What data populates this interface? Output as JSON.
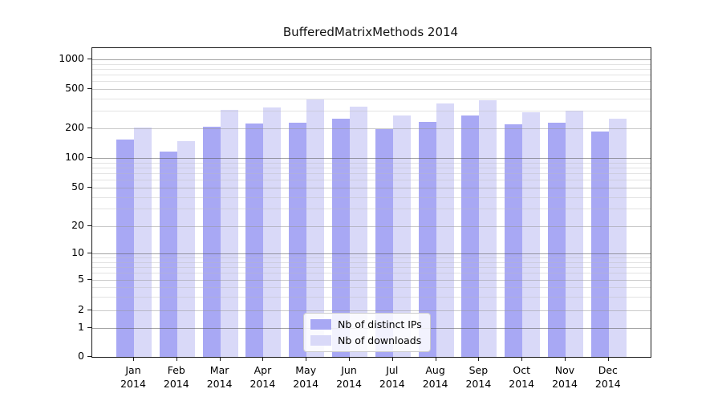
{
  "chart_data": {
    "type": "bar",
    "title": "BufferedMatrixMethods 2014",
    "year_label": "2014",
    "categories": [
      "Jan",
      "Feb",
      "Mar",
      "Apr",
      "May",
      "Jun",
      "Jul",
      "Aug",
      "Sep",
      "Oct",
      "Nov",
      "Dec"
    ],
    "series": [
      {
        "name": "Nb of distinct IPs",
        "color": "#a8a8f4",
        "values": [
          154,
          116,
          206,
          225,
          227,
          250,
          196,
          233,
          269,
          221,
          229,
          187
        ]
      },
      {
        "name": "Nb of downloads",
        "color": "#d9d9f8",
        "values": [
          202,
          149,
          308,
          326,
          393,
          330,
          271,
          354,
          381,
          291,
          299,
          251
        ]
      }
    ],
    "y_ticks": [
      0,
      1,
      2,
      5,
      10,
      20,
      50,
      100,
      200,
      500,
      1000
    ],
    "y_scale": "symlog",
    "ylim": [
      0,
      1150
    ],
    "xlabel": "",
    "ylabel": "",
    "grid": "horizontal",
    "legend_position": "lower-center"
  }
}
